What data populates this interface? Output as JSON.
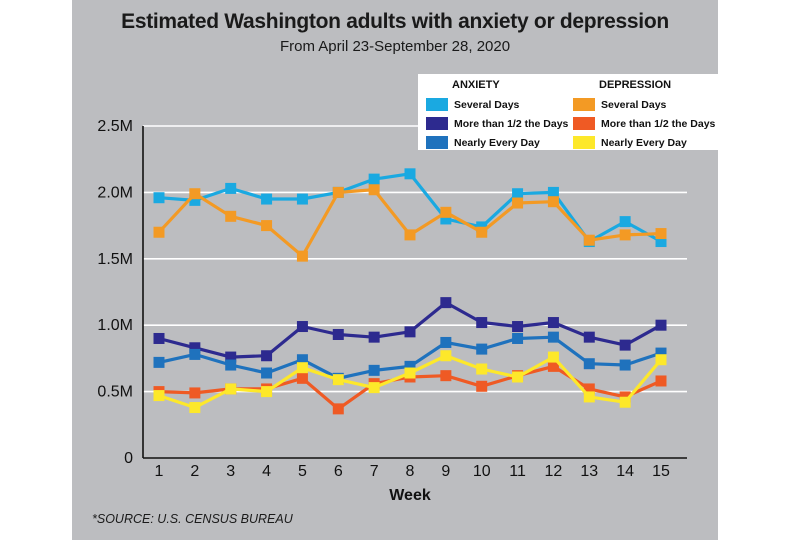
{
  "title": "Estimated Washington adults with anxiety or depression",
  "subtitle": "From April 23-September 28, 2020",
  "source": "*SOURCE: U.S. CENSUS BUREAU",
  "legend": {
    "anxiety_header": "ANXIETY",
    "depression_header": "DEPRESSION"
  },
  "chart_data": {
    "type": "line",
    "title": "Estimated Washington adults with anxiety or depression",
    "subtitle": "From April 23-September 28, 2020",
    "xlabel": "Week",
    "ylabel": "",
    "x": [
      1,
      2,
      3,
      4,
      5,
      6,
      7,
      8,
      9,
      10,
      11,
      12,
      13,
      14,
      15
    ],
    "ylim": [
      0,
      2500000
    ],
    "yticks": [
      0,
      500000,
      1000000,
      1500000,
      2000000,
      2500000
    ],
    "ytick_labels": [
      "0",
      "0.5M",
      "1.0M",
      "1.5M",
      "2.0M",
      "2.5M"
    ],
    "grid": "horizontal",
    "legend_position": "top-right",
    "series": [
      {
        "name": "Several Days",
        "group": "ANXIETY",
        "color": "#1aa9e1",
        "values": [
          1960000,
          1940000,
          2030000,
          1950000,
          1950000,
          2000000,
          2100000,
          2140000,
          1800000,
          1740000,
          1990000,
          2000000,
          1630000,
          1780000,
          1630000
        ]
      },
      {
        "name": "More than 1/2 the Days",
        "group": "ANXIETY",
        "color": "#2d2a8f",
        "values": [
          900000,
          830000,
          760000,
          770000,
          990000,
          930000,
          910000,
          950000,
          1170000,
          1020000,
          990000,
          1020000,
          910000,
          850000,
          1000000
        ]
      },
      {
        "name": "Nearly Every Day",
        "group": "ANXIETY",
        "color": "#1f72bd",
        "values": [
          720000,
          780000,
          700000,
          640000,
          740000,
          600000,
          660000,
          690000,
          870000,
          820000,
          900000,
          910000,
          710000,
          700000,
          790000
        ]
      },
      {
        "name": "Several Days",
        "group": "DEPRESSION",
        "color": "#f39a24",
        "values": [
          1700000,
          1990000,
          1820000,
          1750000,
          1520000,
          2000000,
          2020000,
          1680000,
          1850000,
          1700000,
          1920000,
          1930000,
          1640000,
          1680000,
          1690000
        ]
      },
      {
        "name": "More than 1/2 the Days",
        "group": "DEPRESSION",
        "color": "#ef5a24",
        "values": [
          500000,
          490000,
          520000,
          520000,
          600000,
          370000,
          560000,
          610000,
          620000,
          540000,
          620000,
          690000,
          520000,
          460000,
          580000
        ]
      },
      {
        "name": "Nearly Every Day",
        "group": "DEPRESSION",
        "color": "#fde82a",
        "values": [
          470000,
          380000,
          520000,
          500000,
          680000,
          590000,
          530000,
          640000,
          770000,
          670000,
          610000,
          760000,
          460000,
          420000,
          740000
        ]
      }
    ]
  }
}
